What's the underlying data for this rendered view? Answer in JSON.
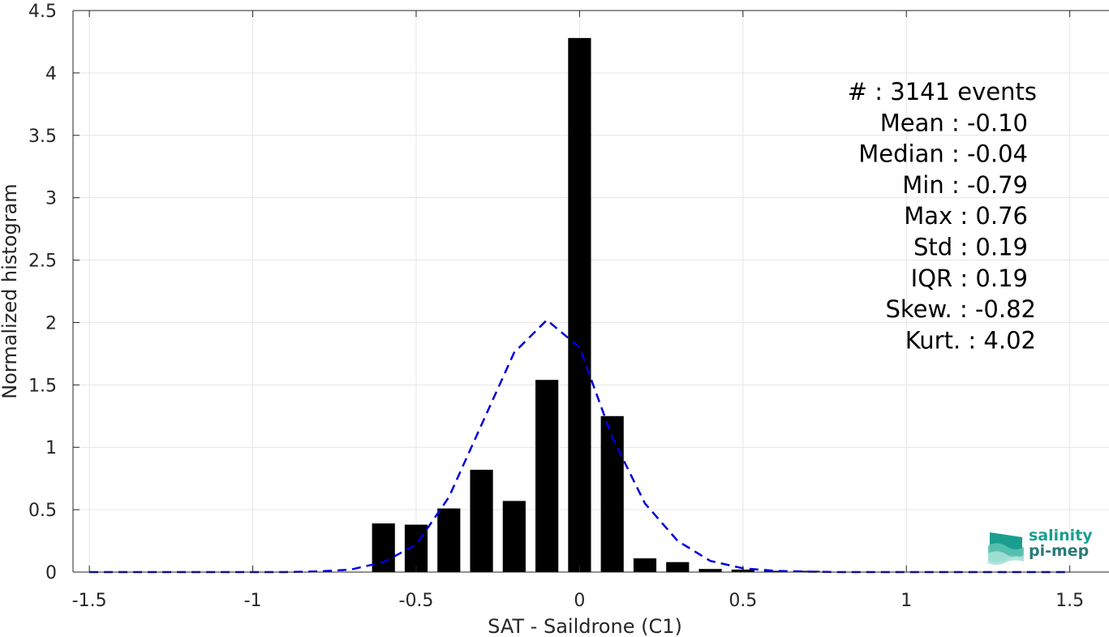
{
  "chart_data": {
    "type": "bar",
    "xlabel": "SAT - Saildrone (C1)",
    "ylabel": "Normalized histogram",
    "xlim": [
      -1.55,
      1.62
    ],
    "ylim": [
      0,
      4.5
    ],
    "xticks": [
      -1.5,
      -1,
      -0.5,
      0,
      0.5,
      1,
      1.5
    ],
    "xtick_labels": [
      "-1.5",
      "-1",
      "-0.5",
      "0",
      "0.5",
      "1",
      "1.5"
    ],
    "yticks": [
      0,
      0.5,
      1,
      1.5,
      2,
      2.5,
      3,
      3.5,
      4,
      4.5
    ],
    "ytick_labels": [
      "0",
      "0.5",
      "1",
      "1.5",
      "2",
      "2.5",
      "3",
      "3.5",
      "4",
      "4.5"
    ],
    "grid": true,
    "bar_width": 0.07,
    "histogram": {
      "x": [
        -0.6,
        -0.5,
        -0.4,
        -0.3,
        -0.2,
        -0.1,
        0.0,
        0.1,
        0.2,
        0.3,
        0.4,
        0.5,
        0.6,
        0.7
      ],
      "values": [
        0.39,
        0.38,
        0.51,
        0.82,
        0.57,
        1.54,
        4.28,
        1.25,
        0.11,
        0.08,
        0.025,
        0.02,
        0.01,
        0.01
      ],
      "color": "#000000"
    },
    "fit_curve": {
      "style": "dashed",
      "color": "#0000dd",
      "x": [
        -1.5,
        -1.4,
        -1.3,
        -1.2,
        -1.1,
        -1.0,
        -0.9,
        -0.8,
        -0.7,
        -0.6,
        -0.5,
        -0.4,
        -0.3,
        -0.2,
        -0.1,
        0.0,
        0.1,
        0.2,
        0.3,
        0.4,
        0.5,
        0.6,
        0.7,
        0.8,
        0.9,
        1.0,
        1.1,
        1.2,
        1.3,
        1.4,
        1.5
      ],
      "values": [
        0,
        0,
        0,
        0,
        0,
        0,
        0,
        0.005,
        0.02,
        0.08,
        0.22,
        0.6,
        1.18,
        1.76,
        2.02,
        1.8,
        1.08,
        0.55,
        0.25,
        0.09,
        0.03,
        0.01,
        0.003,
        0,
        0,
        0,
        0,
        0,
        0,
        0,
        0
      ]
    },
    "stats": [
      {
        "label": "#",
        "sep": " : ",
        "value": "3141 events"
      },
      {
        "label": "Mean",
        "sep": " : ",
        "value": "-0.10"
      },
      {
        "label": "Median",
        "sep": " : ",
        "value": "-0.04"
      },
      {
        "label": "Min",
        "sep": " : ",
        "value": "-0.79"
      },
      {
        "label": "Max",
        "sep": " : ",
        "value": "0.76"
      },
      {
        "label": "Std",
        "sep": " : ",
        "value": "0.19"
      },
      {
        "label": "IQR",
        "sep": " : ",
        "value": "0.19"
      },
      {
        "label": "Skew.",
        "sep": " : ",
        "value": "-0.82"
      },
      {
        "label": "Kurt.",
        "sep": " : ",
        "value": "4.02"
      }
    ]
  },
  "logo": {
    "line1": "salinity",
    "line2": "pi-mep",
    "color_primary": "#1a9e8f",
    "color_secondary": "#2a7a78"
  }
}
